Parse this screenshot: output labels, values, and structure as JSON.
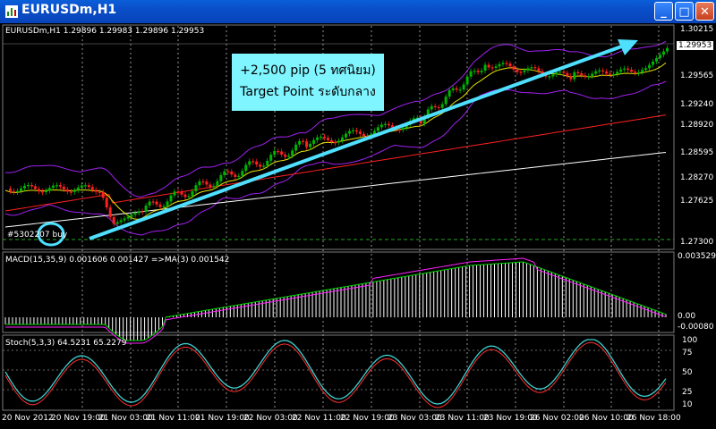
{
  "window": {
    "title": "EURUSDm,H1",
    "minimize_label": "_",
    "maximize_label": "□",
    "close_label": "✕"
  },
  "main_pane": {
    "info": "EURUSDm,H1  1.29896 1.29983 1.29896 1.29953",
    "price_labels": [
      "1.30215",
      "1.29953",
      "1.29565",
      "1.29240",
      "1.28920",
      "1.28595",
      "1.28270",
      "1.27625",
      "1.27300"
    ],
    "current_price": "1.29953",
    "annotation_line1": "+2,500 pip (5 ทศนิยม)",
    "annotation_line2": "Target Point ระดับกลาง",
    "order_label": "#5302207 buy",
    "colors": {
      "arrow": "#4fe0ff",
      "bull": "#00b400",
      "bear": "#ff0000",
      "bb": "#a020f0",
      "ma_slow": "#ff2020",
      "ma_white": "#ffffff",
      "ma_fast": "#e6e600"
    }
  },
  "macd_pane": {
    "info": "MACD(15,35,9) 0.001606 0.001427  =>MA(3) 0.001542",
    "axis_labels": [
      "0.003529",
      "0.00",
      "-0.00080"
    ]
  },
  "stoch_pane": {
    "info": "Stoch(5,3,3) 64.5231 65.2279",
    "axis_labels": [
      "100",
      "75",
      "50",
      "25",
      "10"
    ]
  },
  "time_axis": {
    "labels": [
      "20 Nov 2012",
      "20 Nov 19:00",
      "21 Nov 03:00",
      "21 Nov 11:00",
      "21 Nov 19:00",
      "22 Nov 03:00",
      "22 Nov 11:00",
      "22 Nov 19:00",
      "23 Nov 03:00",
      "23 Nov 11:00",
      "23 Nov 19:00",
      "26 Nov 02:00",
      "26 Nov 10:00",
      "26 Nov 18:00"
    ]
  }
}
